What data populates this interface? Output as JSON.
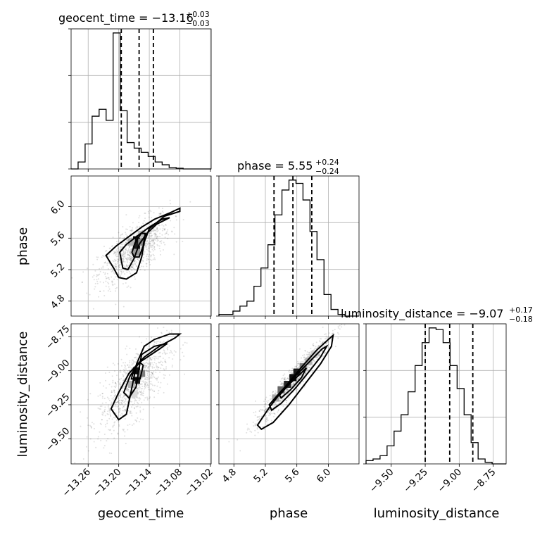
{
  "chart_data": {
    "type": "corner",
    "parameters": [
      {
        "name": "geocent_time",
        "xlabel": "geocent_time",
        "ticks": [
          "−13.26",
          "−13.20",
          "−13.14",
          "−13.08",
          "−13.02"
        ],
        "tick_values": [
          -13.26,
          -13.2,
          -13.14,
          -13.08,
          -13.02
        ],
        "range": [
          -13.2935,
          -13.0185
        ],
        "title_main": "geocent_time = −13.16",
        "title_sup": "+0.03",
        "title_sub": "−0.03",
        "quantiles": [
          -13.195,
          -13.16,
          -13.132
        ],
        "hist_edges_start": -13.2935,
        "hist_bin_width": 0.01375,
        "hist_values": [
          0,
          0.05,
          0.18,
          0.38,
          0.43,
          0.35,
          0.98,
          0.42,
          0.19,
          0.15,
          0.12,
          0.09,
          0.05,
          0.03,
          0.01,
          0.005,
          0,
          0,
          0,
          0
        ]
      },
      {
        "name": "phase",
        "xlabel": "phase",
        "ylabel": "phase",
        "ticks": [
          "4.8",
          "5.2",
          "5.6",
          "6.0"
        ],
        "tick_values": [
          4.8,
          5.2,
          5.6,
          6.0
        ],
        "range": [
          4.61,
          6.39
        ],
        "title_main": "phase = 5.55",
        "title_sup": "+0.24",
        "title_sub": "−0.24",
        "quantiles": [
          5.31,
          5.55,
          5.79
        ],
        "hist_edges_start": 4.61,
        "hist_bin_width": 0.089,
        "hist_values": [
          0.01,
          0.01,
          0.03,
          0.06,
          0.09,
          0.18,
          0.29,
          0.43,
          0.61,
          0.76,
          0.82,
          0.8,
          0.7,
          0.51,
          0.34,
          0.13,
          0.04,
          0.01,
          0,
          0
        ]
      },
      {
        "name": "luminosity_distance",
        "xlabel": "luminosity_distance",
        "ylabel": "luminosity_distance",
        "ticks": [
          "−9.50",
          "−9.25",
          "−9.00",
          "−8.75"
        ],
        "tick_values": [
          -9.5,
          -9.25,
          -9.0,
          -8.75
        ],
        "range": [
          -9.685,
          -8.655
        ],
        "title_main": "luminosity_distance = −9.07",
        "title_sup": "+0.17",
        "title_sub": "−0.18",
        "quantiles": [
          -9.25,
          -9.07,
          -8.9
        ],
        "hist_edges_start": -9.685,
        "hist_bin_width": 0.0515,
        "hist_values": [
          0.02,
          0.03,
          0.05,
          0.11,
          0.2,
          0.3,
          0.44,
          0.6,
          0.74,
          0.83,
          0.82,
          0.74,
          0.6,
          0.46,
          0.3,
          0.13,
          0.03,
          0.01,
          0,
          0
        ]
      }
    ],
    "pairs": [
      {
        "x": "geocent_time",
        "y": "phase",
        "contour_outer": [
          [
            -13.225,
            5.38
          ],
          [
            -13.205,
            5.5
          ],
          [
            -13.18,
            5.62
          ],
          [
            -13.155,
            5.74
          ],
          [
            -13.13,
            5.84
          ],
          [
            -13.1,
            5.92
          ],
          [
            -13.08,
            5.98
          ],
          [
            -13.08,
            5.94
          ],
          [
            -13.11,
            5.88
          ],
          [
            -13.14,
            5.72
          ],
          [
            -13.15,
            5.55
          ],
          [
            -13.155,
            5.36
          ],
          [
            -13.165,
            5.16
          ],
          [
            -13.185,
            5.08
          ],
          [
            -13.2,
            5.1
          ],
          [
            -13.21,
            5.22
          ],
          [
            -13.225,
            5.38
          ]
        ],
        "contour_inner": [
          [
            -13.198,
            5.42
          ],
          [
            -13.185,
            5.52
          ],
          [
            -13.165,
            5.62
          ],
          [
            -13.14,
            5.74
          ],
          [
            -13.115,
            5.84
          ],
          [
            -13.1,
            5.86
          ],
          [
            -13.125,
            5.78
          ],
          [
            -13.145,
            5.66
          ],
          [
            -13.16,
            5.52
          ],
          [
            -13.17,
            5.34
          ],
          [
            -13.182,
            5.2
          ],
          [
            -13.192,
            5.22
          ],
          [
            -13.198,
            5.42
          ]
        ],
        "contour_core": [
          [
            -13.174,
            5.42
          ],
          [
            -13.168,
            5.54
          ],
          [
            -13.156,
            5.66
          ],
          [
            -13.148,
            5.66
          ],
          [
            -13.152,
            5.5
          ],
          [
            -13.16,
            5.36
          ],
          [
            -13.17,
            5.36
          ],
          [
            -13.174,
            5.42
          ]
        ],
        "cells": [
          [
            -13.165,
            5.58,
            0.95
          ],
          [
            -13.165,
            5.5,
            0.9
          ],
          [
            -13.155,
            5.55,
            0.45
          ],
          [
            -13.175,
            5.55,
            0.3
          ],
          [
            -13.165,
            5.42,
            0.4
          ],
          [
            -13.155,
            5.65,
            0.25
          ]
        ],
        "scatter_center": [
          -13.17,
          5.45
        ],
        "scatter_spread": [
          0.035,
          0.22
        ],
        "scatter_corr": 0.7
      },
      {
        "x": "geocent_time",
        "y": "luminosity_distance",
        "contour_outer": [
          [
            -13.215,
            -9.28
          ],
          [
            -13.2,
            -9.16
          ],
          [
            -13.18,
            -9.02
          ],
          [
            -13.15,
            -8.9
          ],
          [
            -13.12,
            -8.82
          ],
          [
            -13.09,
            -8.76
          ],
          [
            -13.08,
            -8.73
          ],
          [
            -13.1,
            -8.73
          ],
          [
            -13.13,
            -8.77
          ],
          [
            -13.15,
            -8.82
          ],
          [
            -13.165,
            -8.95
          ],
          [
            -13.175,
            -9.14
          ],
          [
            -13.185,
            -9.32
          ],
          [
            -13.2,
            -9.36
          ],
          [
            -13.215,
            -9.28
          ]
        ],
        "contour_inner": [
          [
            -13.19,
            -9.16
          ],
          [
            -13.178,
            -9.04
          ],
          [
            -13.16,
            -8.94
          ],
          [
            -13.12,
            -8.84
          ],
          [
            -13.105,
            -8.8
          ],
          [
            -13.13,
            -8.82
          ],
          [
            -13.155,
            -8.88
          ],
          [
            -13.16,
            -8.98
          ],
          [
            -13.166,
            -9.12
          ],
          [
            -13.18,
            -9.2
          ],
          [
            -13.19,
            -9.16
          ]
        ],
        "contour_core": [
          [
            -13.175,
            -9.06
          ],
          [
            -13.17,
            -8.98
          ],
          [
            -13.158,
            -8.94
          ],
          [
            -13.152,
            -8.96
          ],
          [
            -13.158,
            -9.06
          ],
          [
            -13.175,
            -9.06
          ]
        ],
        "cells": [
          [
            -13.165,
            -9.0,
            0.95
          ],
          [
            -13.165,
            -9.07,
            0.9
          ],
          [
            -13.155,
            -9.02,
            0.5
          ],
          [
            -13.175,
            -9.1,
            0.3
          ],
          [
            -13.17,
            -9.17,
            0.15
          ]
        ],
        "scatter_center": [
          -13.17,
          -9.1
        ],
        "scatter_spread": [
          0.035,
          0.17
        ],
        "scatter_corr": 0.7
      },
      {
        "x": "phase",
        "y": "luminosity_distance",
        "contour_outer": [
          [
            5.1,
            -9.4
          ],
          [
            5.25,
            -9.27
          ],
          [
            5.45,
            -9.12
          ],
          [
            5.65,
            -8.98
          ],
          [
            5.85,
            -8.85
          ],
          [
            6.0,
            -8.77
          ],
          [
            6.06,
            -8.74
          ],
          [
            6.04,
            -8.82
          ],
          [
            5.9,
            -8.95
          ],
          [
            5.7,
            -9.1
          ],
          [
            5.5,
            -9.25
          ],
          [
            5.3,
            -9.38
          ],
          [
            5.15,
            -9.43
          ],
          [
            5.1,
            -9.4
          ]
        ],
        "contour_inner": [
          [
            5.25,
            -9.25
          ],
          [
            5.4,
            -9.15
          ],
          [
            5.58,
            -9.04
          ],
          [
            5.75,
            -8.94
          ],
          [
            5.92,
            -8.84
          ],
          [
            5.98,
            -8.82
          ],
          [
            5.9,
            -8.9
          ],
          [
            5.75,
            -9.01
          ],
          [
            5.58,
            -9.13
          ],
          [
            5.4,
            -9.24
          ],
          [
            5.28,
            -9.29
          ],
          [
            5.25,
            -9.25
          ]
        ],
        "contour_core": [
          [
            5.38,
            -9.18
          ],
          [
            5.5,
            -9.1
          ],
          [
            5.65,
            -9.02
          ],
          [
            5.72,
            -8.98
          ],
          [
            5.66,
            -9.05
          ],
          [
            5.52,
            -9.14
          ],
          [
            5.4,
            -9.2
          ],
          [
            5.38,
            -9.18
          ]
        ],
        "cells": [
          [
            5.55,
            -9.05,
            0.95
          ],
          [
            5.6,
            -9.01,
            0.9
          ],
          [
            5.48,
            -9.1,
            0.85
          ],
          [
            5.4,
            -9.14,
            0.6
          ],
          [
            5.68,
            -8.97,
            0.5
          ],
          [
            5.75,
            -8.93,
            0.3
          ],
          [
            5.33,
            -9.2,
            0.35
          ],
          [
            5.82,
            -8.88,
            0.2
          ]
        ],
        "scatter_center": [
          5.55,
          -9.07
        ],
        "scatter_spread": [
          0.24,
          0.17
        ],
        "scatter_corr": 0.96
      }
    ]
  }
}
